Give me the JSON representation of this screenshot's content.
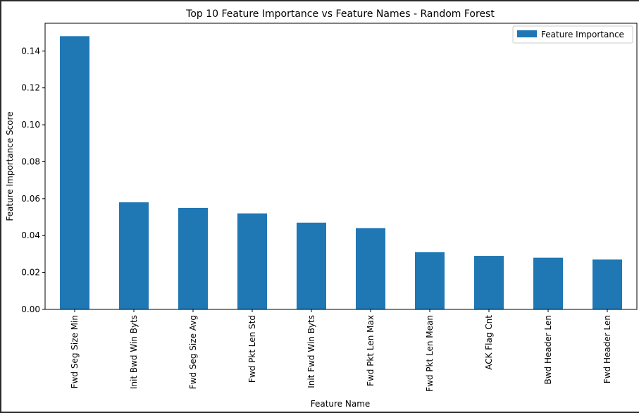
{
  "chart_data": {
    "type": "bar",
    "title": "Top 10 Feature Importance vs Feature Names - Random Forest",
    "xlabel": "Feature Name",
    "ylabel": "Feature Importance Score",
    "categories": [
      "Fwd Seg Size Min",
      "Init Bwd Win Byts",
      "Fwd Seg Size Avg",
      "Fwd Pkt Len Std",
      "Init Fwd Win Byts",
      "Fwd Pkt Len Max",
      "Fwd Pkt Len Mean",
      "ACK Flag Cnt",
      "Bwd Header Len",
      "Fwd Header Len"
    ],
    "series": [
      {
        "name": "Feature Importance",
        "color": "#1f77b4",
        "values": [
          0.148,
          0.058,
          0.055,
          0.052,
          0.047,
          0.044,
          0.031,
          0.029,
          0.028,
          0.027
        ]
      }
    ],
    "ylim": [
      0,
      0.155
    ],
    "yticks": [
      0.0,
      0.02,
      0.04,
      0.06,
      0.08,
      0.1,
      0.12,
      0.14
    ],
    "ytick_labels": [
      "0.00",
      "0.02",
      "0.04",
      "0.06",
      "0.08",
      "0.10",
      "0.12",
      "0.14"
    ],
    "grid": false,
    "legend": {
      "position": "top-right",
      "entries": [
        "Feature Importance"
      ]
    }
  }
}
